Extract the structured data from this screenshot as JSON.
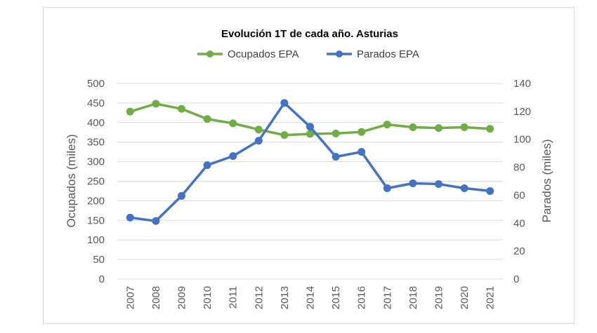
{
  "chart_data": {
    "type": "line",
    "title": "Evolución 1T de cada año. Asturias",
    "categories": [
      "2007",
      "2008",
      "2009",
      "2010",
      "2011",
      "2012",
      "2013",
      "2014",
      "2015",
      "2016",
      "2017",
      "2018",
      "2019",
      "2020",
      "2021"
    ],
    "ylabel": "Ocupados (miles)",
    "y2label": "Parados (miles)",
    "ylim": [
      0,
      500
    ],
    "y_ticks": [
      0,
      50,
      100,
      150,
      200,
      250,
      300,
      350,
      400,
      450,
      500
    ],
    "y2lim": [
      0,
      140
    ],
    "y2_ticks": [
      0,
      20,
      40,
      60,
      80,
      100,
      120,
      140
    ],
    "grid": true,
    "legend_position": "top",
    "series": [
      {
        "name": "Ocupados EPA",
        "axis": "left",
        "color": "#70ad47",
        "values": [
          428,
          448,
          435,
          409,
          398,
          382,
          368,
          371,
          372,
          376,
          395,
          388,
          386,
          388,
          384
        ]
      },
      {
        "name": "Parados EPA",
        "axis": "right",
        "color": "#4472c4",
        "values": [
          44,
          41.5,
          59.5,
          81.5,
          88,
          99,
          126,
          109,
          87.5,
          91,
          65,
          68.5,
          68,
          65,
          63
        ]
      }
    ]
  }
}
